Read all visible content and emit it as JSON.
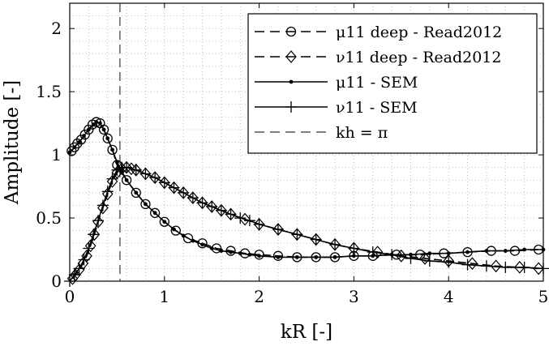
{
  "chart_data": {
    "type": "line",
    "xlabel": "kR [-]",
    "ylabel": "Amplitude [-]",
    "xlim": [
      0,
      5
    ],
    "ylim": [
      0,
      2.2
    ],
    "x_ticks": [
      "0",
      "1",
      "2",
      "3",
      "4",
      "5"
    ],
    "y_ticks": [
      "0",
      "0.5",
      "1",
      "1.5",
      "2"
    ],
    "grid": "dotted major and minor",
    "legend_position": "top-right",
    "vline": {
      "x": 0.53,
      "label": "kh = π"
    },
    "series": [
      {
        "name": "μ11 deep - Read2012",
        "linestyle": "dashed",
        "marker": "circle",
        "x": [
          0.02,
          0.05,
          0.08,
          0.12,
          0.16,
          0.2,
          0.24,
          0.28,
          0.32,
          0.36,
          0.4,
          0.45,
          0.5,
          0.6,
          0.7,
          0.8,
          0.9,
          1.0,
          1.12,
          1.25,
          1.4,
          1.55,
          1.7,
          1.85,
          2.0,
          2.2,
          2.4,
          2.6,
          2.8,
          3.0,
          3.2,
          3.45,
          3.7,
          3.95,
          4.2,
          4.45,
          4.7,
          4.95
        ],
        "y": [
          1.03,
          1.06,
          1.09,
          1.12,
          1.16,
          1.2,
          1.24,
          1.26,
          1.25,
          1.2,
          1.13,
          1.04,
          0.92,
          0.8,
          0.7,
          0.61,
          0.54,
          0.47,
          0.4,
          0.34,
          0.3,
          0.26,
          0.24,
          0.22,
          0.21,
          0.2,
          0.19,
          0.19,
          0.19,
          0.2,
          0.2,
          0.21,
          0.21,
          0.22,
          0.23,
          0.24,
          0.24,
          0.25
        ]
      },
      {
        "name": "ν11 deep - Read2012",
        "linestyle": "dashed",
        "marker": "diamond",
        "x": [
          0.03,
          0.06,
          0.1,
          0.14,
          0.18,
          0.22,
          0.26,
          0.3,
          0.35,
          0.4,
          0.45,
          0.5,
          0.55,
          0.6,
          0.65,
          0.7,
          0.8,
          0.9,
          1.0,
          1.1,
          1.2,
          1.3,
          1.4,
          1.5,
          1.6,
          1.7,
          1.85,
          2.0,
          2.2,
          2.4,
          2.6,
          2.8,
          3.0,
          3.25,
          3.5,
          3.75,
          4.0,
          4.25,
          4.5,
          4.75,
          4.95
        ],
        "y": [
          0.02,
          0.05,
          0.09,
          0.14,
          0.2,
          0.28,
          0.37,
          0.47,
          0.58,
          0.69,
          0.79,
          0.86,
          0.89,
          0.9,
          0.89,
          0.88,
          0.85,
          0.82,
          0.78,
          0.74,
          0.7,
          0.66,
          0.62,
          0.59,
          0.56,
          0.53,
          0.49,
          0.45,
          0.41,
          0.37,
          0.33,
          0.29,
          0.26,
          0.23,
          0.2,
          0.18,
          0.16,
          0.14,
          0.12,
          0.11,
          0.1
        ]
      },
      {
        "name": "μ11 - SEM",
        "linestyle": "solid",
        "marker": "dot",
        "x": [
          0.0,
          0.05,
          0.1,
          0.15,
          0.2,
          0.25,
          0.28,
          0.32,
          0.36,
          0.4,
          0.45,
          0.5,
          0.55,
          0.6,
          0.7,
          0.8,
          0.9,
          1.0,
          1.1,
          1.2,
          1.3,
          1.4,
          1.5,
          1.6,
          1.7,
          1.8,
          1.9,
          2.0,
          2.2,
          2.4,
          2.6,
          2.8,
          3.0,
          3.2,
          3.4,
          3.6,
          3.8,
          4.0,
          4.2,
          4.4,
          4.6,
          4.8,
          5.0
        ],
        "y": [
          1.02,
          1.06,
          1.1,
          1.15,
          1.2,
          1.24,
          1.26,
          1.25,
          1.2,
          1.13,
          1.04,
          0.94,
          0.87,
          0.8,
          0.7,
          0.61,
          0.54,
          0.47,
          0.41,
          0.36,
          0.32,
          0.29,
          0.26,
          0.24,
          0.23,
          0.22,
          0.21,
          0.2,
          0.19,
          0.19,
          0.19,
          0.19,
          0.2,
          0.2,
          0.21,
          0.21,
          0.22,
          0.22,
          0.23,
          0.24,
          0.24,
          0.25,
          0.25
        ]
      },
      {
        "name": "ν11 - SEM",
        "linestyle": "solid",
        "marker": "plus",
        "x": [
          0.0,
          0.05,
          0.1,
          0.15,
          0.2,
          0.25,
          0.3,
          0.35,
          0.4,
          0.45,
          0.5,
          0.55,
          0.6,
          0.7,
          0.8,
          0.9,
          1.0,
          1.1,
          1.2,
          1.3,
          1.4,
          1.5,
          1.6,
          1.7,
          1.8,
          1.9,
          2.0,
          2.2,
          2.4,
          2.6,
          2.8,
          3.0,
          3.2,
          3.4,
          3.6,
          3.8,
          4.0,
          4.2,
          4.4,
          4.6,
          4.8,
          5.0
        ],
        "y": [
          0.0,
          0.05,
          0.1,
          0.17,
          0.26,
          0.37,
          0.48,
          0.6,
          0.71,
          0.81,
          0.88,
          0.9,
          0.9,
          0.88,
          0.85,
          0.82,
          0.78,
          0.74,
          0.7,
          0.66,
          0.62,
          0.59,
          0.56,
          0.53,
          0.5,
          0.48,
          0.45,
          0.41,
          0.37,
          0.33,
          0.29,
          0.26,
          0.23,
          0.21,
          0.18,
          0.16,
          0.15,
          0.13,
          0.12,
          0.11,
          0.11,
          0.1
        ]
      }
    ],
    "legend": [
      {
        "name": "μ11 deep - Read2012"
      },
      {
        "name": "ν11 deep - Read2012"
      },
      {
        "name": "μ11 - SEM"
      },
      {
        "name": "ν11 - SEM"
      },
      {
        "name": "kh = π"
      }
    ]
  }
}
